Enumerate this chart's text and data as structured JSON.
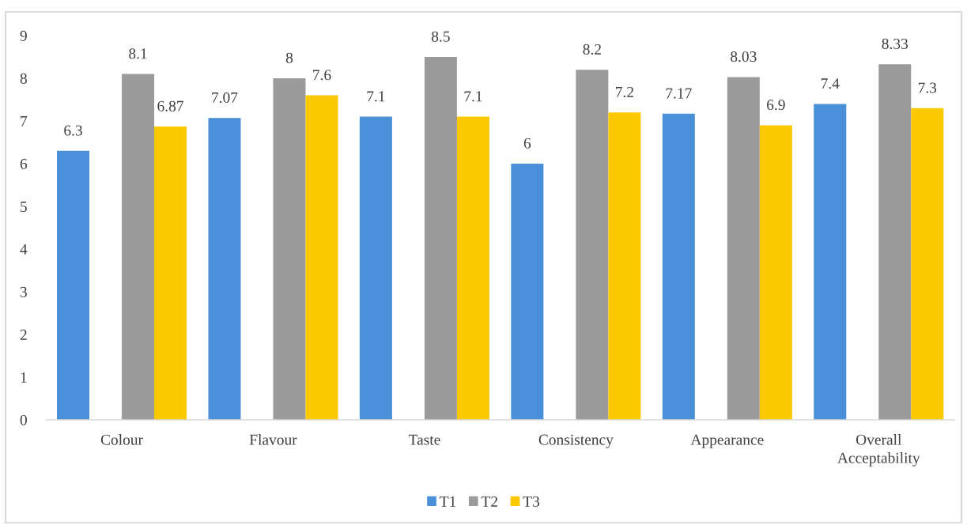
{
  "chart_data": {
    "type": "bar",
    "categories": [
      "Colour",
      "Flavour",
      "Taste",
      "Consistency",
      "Appearance",
      "Overall\nAcceptability"
    ],
    "series": [
      {
        "name": "T1",
        "color": "#4a90d9",
        "values": [
          6.3,
          7.07,
          7.1,
          6,
          7.17,
          7.4
        ]
      },
      {
        "name": "T2",
        "color": "#9b9b9b",
        "values": [
          8.1,
          8,
          8.5,
          8.2,
          8.03,
          8.33
        ]
      },
      {
        "name": "T3",
        "color": "#fcc800",
        "values": [
          6.87,
          7.6,
          7.1,
          7.2,
          6.9,
          7.3
        ]
      }
    ],
    "ylim": [
      0,
      9
    ],
    "yticks": [
      0,
      1,
      2,
      3,
      4,
      5,
      6,
      7,
      8,
      9
    ],
    "data_labels": true,
    "legend": "bottom",
    "grid": false
  }
}
